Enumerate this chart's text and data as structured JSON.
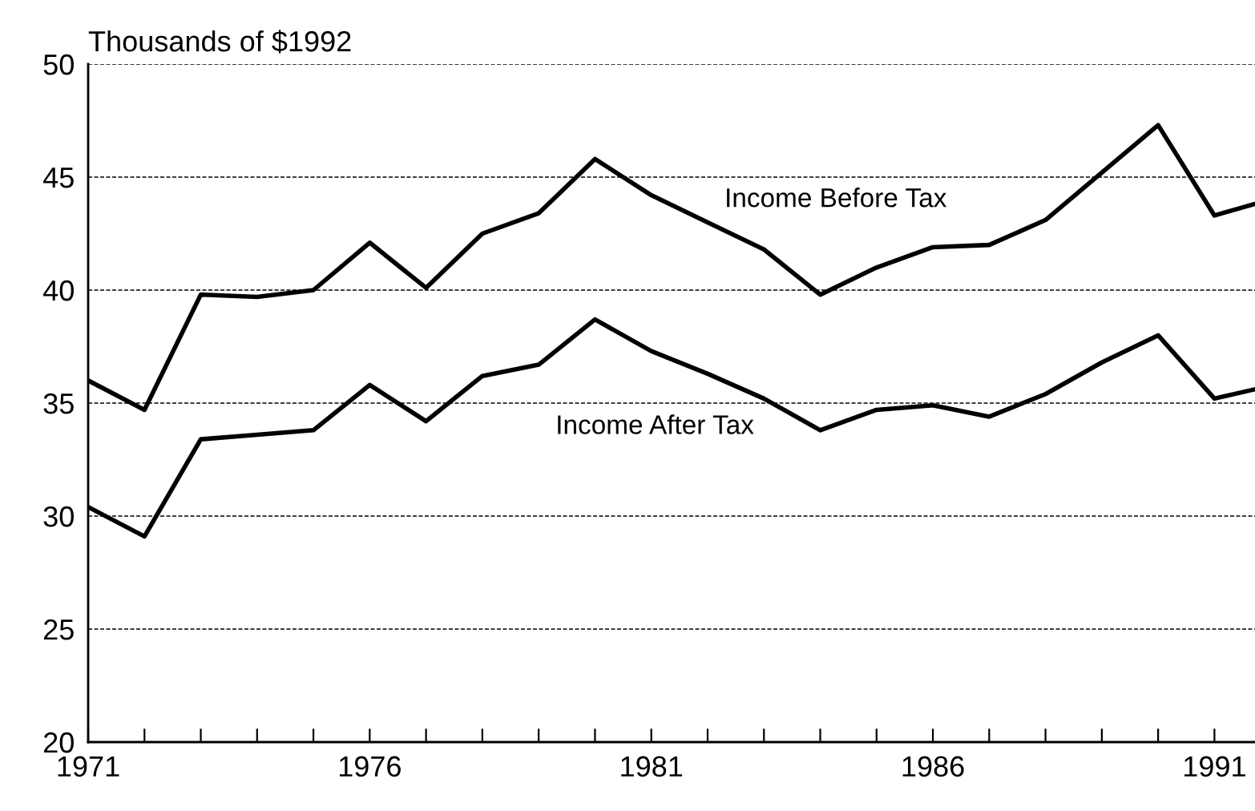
{
  "chart_data": {
    "type": "line",
    "ylabel": "Thousands of $1992",
    "x": [
      1971,
      1972,
      1973,
      1974,
      1975,
      1976,
      1977,
      1978,
      1979,
      1980,
      1981,
      1982,
      1983,
      1984,
      1985,
      1986,
      1987,
      1988,
      1989,
      1990,
      1991,
      1991.7
    ],
    "series": [
      {
        "name": "Income Before Tax",
        "color": "#000000",
        "values": [
          36.0,
          34.7,
          39.8,
          39.7,
          40.0,
          42.1,
          40.1,
          42.5,
          43.4,
          45.8,
          44.2,
          43.0,
          41.8,
          39.8,
          41.0,
          41.9,
          42.0,
          43.1,
          45.2,
          47.3,
          43.3,
          43.8
        ]
      },
      {
        "name": "Income After Tax",
        "color": "#000000",
        "values": [
          30.4,
          29.1,
          33.4,
          33.6,
          33.8,
          35.8,
          34.2,
          36.2,
          36.7,
          38.7,
          37.3,
          36.3,
          35.2,
          33.8,
          34.7,
          34.9,
          34.4,
          35.4,
          36.8,
          38.0,
          35.2,
          35.6
        ]
      }
    ],
    "xlim": [
      1971,
      1991.72
    ],
    "ylim": [
      20,
      50
    ],
    "xticks": [
      1971,
      {
        "value": 1972,
        "label": null
      },
      {
        "value": 1973,
        "label": null
      },
      {
        "value": 1974,
        "label": null
      },
      {
        "value": 1975,
        "label": null
      },
      1976,
      {
        "value": 1977,
        "label": null
      },
      {
        "value": 1978,
        "label": null
      },
      {
        "value": 1979,
        "label": null
      },
      {
        "value": 1980,
        "label": null
      },
      1981,
      {
        "value": 1982,
        "label": null
      },
      {
        "value": 1983,
        "label": null
      },
      {
        "value": 1984,
        "label": null
      },
      {
        "value": 1985,
        "label": null
      },
      1986,
      {
        "value": 1987,
        "label": null
      },
      {
        "value": 1988,
        "label": null
      },
      {
        "value": 1989,
        "label": null
      },
      {
        "value": 1990,
        "label": null
      },
      1991
    ],
    "yticks": [
      20,
      25,
      30,
      35,
      40,
      45,
      50
    ],
    "grid": "y",
    "legend": false,
    "line_style": "solid",
    "marker": "none"
  }
}
